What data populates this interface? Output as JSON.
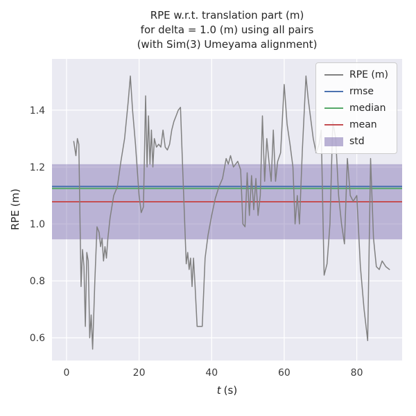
{
  "figure": {
    "title_lines": [
      "RPE w.r.t. translation part (m)",
      "for delta = 1.0 (m) using all pairs",
      "(with Sim(3) Umeyama alignment)"
    ],
    "xlabel_var": "t",
    "xlabel_unit": "(s)",
    "ylabel": "RPE (m)"
  },
  "chart_data": {
    "type": "line",
    "title": "RPE w.r.t. translation part (m) for delta = 1.0 (m) using all pairs (with Sim(3) Umeyama alignment)",
    "xlabel": "t (s)",
    "ylabel": "RPE (m)",
    "xlim": [
      -4,
      92.5
    ],
    "ylim": [
      0.52,
      1.58
    ],
    "xticks": [
      0,
      20,
      40,
      60,
      80
    ],
    "yticks": [
      0.6,
      0.8,
      1.0,
      1.2,
      1.4
    ],
    "grid": true,
    "legend_position": "upper right",
    "colors": {
      "rpe": "#808080",
      "rmse": "#4c72b0",
      "median": "#55a868",
      "mean": "#c44e52",
      "std": "#8172b2",
      "axes_bg": "#eaeaf2",
      "grid": "#ffffff",
      "tick_text": "#3b3b3b"
    },
    "stats": {
      "rmse": 1.132,
      "median": 1.125,
      "mean": 1.078,
      "std": 0.132
    },
    "legend_items": [
      {
        "label": "RPE (m)",
        "type": "line",
        "color": "#808080"
      },
      {
        "label": "rmse",
        "type": "line",
        "color": "#4c72b0"
      },
      {
        "label": "median",
        "type": "line",
        "color": "#55a868"
      },
      {
        "label": "mean",
        "type": "line",
        "color": "#c44e52"
      },
      {
        "label": "std",
        "type": "patch",
        "color": "#8172b2"
      }
    ],
    "series": [
      {
        "name": "RPE (m)",
        "points": [
          [
            2.0,
            1.29
          ],
          [
            2.6,
            1.24
          ],
          [
            3.0,
            1.3
          ],
          [
            3.4,
            1.28
          ],
          [
            4.0,
            0.78
          ],
          [
            4.4,
            0.91
          ],
          [
            4.8,
            0.85
          ],
          [
            5.2,
            0.64
          ],
          [
            5.6,
            0.9
          ],
          [
            6.0,
            0.87
          ],
          [
            6.4,
            0.6
          ],
          [
            6.8,
            0.68
          ],
          [
            7.2,
            0.56
          ],
          [
            7.8,
            0.8
          ],
          [
            8.4,
            0.99
          ],
          [
            9.0,
            0.97
          ],
          [
            9.4,
            0.92
          ],
          [
            9.8,
            0.95
          ],
          [
            10.2,
            0.87
          ],
          [
            10.6,
            0.92
          ],
          [
            11.0,
            0.88
          ],
          [
            11.4,
            0.95
          ],
          [
            12.0,
            1.02
          ],
          [
            13.0,
            1.1
          ],
          [
            14.0,
            1.13
          ],
          [
            15.0,
            1.22
          ],
          [
            16.0,
            1.3
          ],
          [
            17.0,
            1.43
          ],
          [
            17.6,
            1.52
          ],
          [
            18.2,
            1.4
          ],
          [
            19.0,
            1.28
          ],
          [
            20.0,
            1.1
          ],
          [
            20.6,
            1.04
          ],
          [
            21.2,
            1.06
          ],
          [
            21.8,
            1.45
          ],
          [
            22.2,
            1.2
          ],
          [
            22.6,
            1.38
          ],
          [
            23.0,
            1.21
          ],
          [
            23.4,
            1.33
          ],
          [
            23.8,
            1.2
          ],
          [
            24.2,
            1.3
          ],
          [
            24.8,
            1.27
          ],
          [
            25.4,
            1.28
          ],
          [
            26.0,
            1.27
          ],
          [
            26.6,
            1.33
          ],
          [
            27.2,
            1.27
          ],
          [
            27.8,
            1.26
          ],
          [
            28.4,
            1.28
          ],
          [
            29.0,
            1.33
          ],
          [
            29.6,
            1.36
          ],
          [
            30.2,
            1.38
          ],
          [
            30.8,
            1.4
          ],
          [
            31.4,
            1.41
          ],
          [
            32.0,
            1.2
          ],
          [
            33.0,
            0.86
          ],
          [
            33.4,
            0.9
          ],
          [
            33.8,
            0.84
          ],
          [
            34.2,
            0.88
          ],
          [
            34.6,
            0.78
          ],
          [
            35.0,
            0.88
          ],
          [
            35.4,
            0.79
          ],
          [
            36.0,
            0.64
          ],
          [
            36.8,
            0.64
          ],
          [
            37.4,
            0.64
          ],
          [
            38.2,
            0.88
          ],
          [
            39.0,
            0.96
          ],
          [
            40.0,
            1.03
          ],
          [
            41.0,
            1.09
          ],
          [
            42.0,
            1.13
          ],
          [
            43.0,
            1.16
          ],
          [
            44.0,
            1.23
          ],
          [
            44.6,
            1.21
          ],
          [
            45.2,
            1.24
          ],
          [
            46.0,
            1.2
          ],
          [
            46.6,
            1.21
          ],
          [
            47.2,
            1.22
          ],
          [
            48.0,
            1.19
          ],
          [
            48.6,
            1.0
          ],
          [
            49.2,
            0.99
          ],
          [
            49.8,
            1.18
          ],
          [
            50.4,
            1.03
          ],
          [
            51.0,
            1.17
          ],
          [
            51.6,
            1.05
          ],
          [
            52.2,
            1.16
          ],
          [
            52.8,
            1.03
          ],
          [
            53.4,
            1.1
          ],
          [
            54.0,
            1.38
          ],
          [
            54.6,
            1.15
          ],
          [
            55.2,
            1.3
          ],
          [
            55.8,
            1.22
          ],
          [
            56.4,
            1.15
          ],
          [
            57.0,
            1.33
          ],
          [
            57.6,
            1.15
          ],
          [
            58.2,
            1.22
          ],
          [
            59.0,
            1.25
          ],
          [
            60.0,
            1.49
          ],
          [
            60.8,
            1.35
          ],
          [
            61.6,
            1.28
          ],
          [
            62.4,
            1.2
          ],
          [
            63.0,
            1.0
          ],
          [
            63.6,
            1.1
          ],
          [
            64.2,
            1.0
          ],
          [
            65.0,
            1.26
          ],
          [
            66.0,
            1.52
          ],
          [
            66.6,
            1.44
          ],
          [
            67.2,
            1.38
          ],
          [
            68.0,
            1.3
          ],
          [
            68.8,
            1.25
          ],
          [
            69.6,
            1.28
          ],
          [
            70.2,
            1.33
          ],
          [
            71.0,
            0.82
          ],
          [
            71.8,
            0.86
          ],
          [
            72.6,
            1.0
          ],
          [
            73.4,
            1.36
          ],
          [
            74.2,
            1.3
          ],
          [
            75.0,
            1.1
          ],
          [
            75.8,
            1.0
          ],
          [
            76.6,
            0.93
          ],
          [
            77.4,
            1.23
          ],
          [
            78.2,
            1.1
          ],
          [
            79.0,
            1.08
          ],
          [
            80.0,
            1.1
          ],
          [
            81.0,
            0.85
          ],
          [
            82.0,
            0.7
          ],
          [
            83.0,
            0.59
          ],
          [
            83.8,
            1.23
          ],
          [
            84.6,
            0.95
          ],
          [
            85.4,
            0.85
          ],
          [
            86.2,
            0.84
          ],
          [
            87.0,
            0.87
          ],
          [
            88.0,
            0.85
          ],
          [
            89.0,
            0.84
          ]
        ]
      }
    ]
  }
}
